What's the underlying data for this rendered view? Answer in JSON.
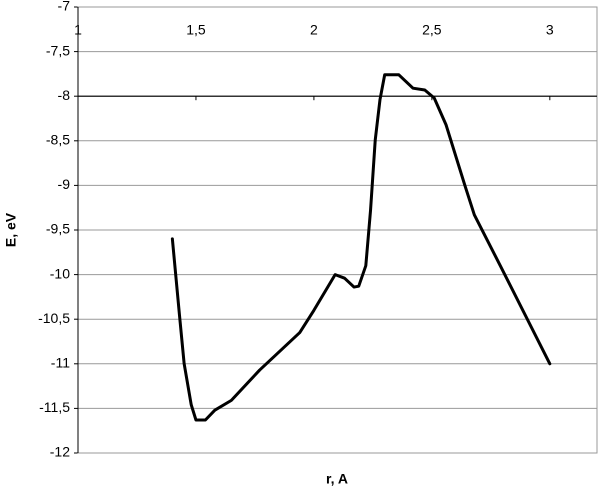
{
  "chart_data": {
    "type": "line",
    "x_label": "r, A",
    "y_label": "E, eV",
    "series": [
      {
        "color": "#000000",
        "x": [
          1.4,
          1.43,
          1.45,
          1.48,
          1.5,
          1.54,
          1.58,
          1.65,
          1.77,
          1.94,
          2.0,
          2.09,
          2.13,
          2.17,
          2.19,
          2.22,
          2.24,
          2.26,
          2.28,
          2.3,
          2.36,
          2.42,
          2.47,
          2.51,
          2.56,
          2.64,
          2.68,
          2.79,
          3.0
        ],
        "values": [
          -9.6,
          -10.45,
          -11.0,
          -11.46,
          -11.63,
          -11.63,
          -11.52,
          -11.41,
          -11.07,
          -10.65,
          -10.4,
          -10.0,
          -10.04,
          -10.14,
          -10.13,
          -9.9,
          -9.28,
          -8.49,
          -8.04,
          -7.76,
          -7.76,
          -7.91,
          -7.93,
          -8.02,
          -8.32,
          -9.0,
          -9.33,
          -9.9,
          -11.0
        ]
      }
    ],
    "xlim": [
      1,
      3.2
    ],
    "xticks": [
      1,
      {
        "value": 1.5,
        "label": "1,5"
      },
      2,
      {
        "value": 2.5,
        "label": "2,5"
      },
      3
    ],
    "ylim": [
      -12,
      -7
    ],
    "yticks": [
      -7,
      {
        "value": -7.5,
        "label": "-7,5"
      },
      -8,
      {
        "value": -8.5,
        "label": "-8,5"
      },
      -9,
      {
        "value": -9.5,
        "label": "-9,5"
      },
      -10,
      {
        "value": -10.5,
        "label": "-10,5"
      },
      -11,
      {
        "value": -11.5,
        "label": "-11,5"
      },
      -12
    ],
    "x_axis_at": -8,
    "grid": true
  }
}
